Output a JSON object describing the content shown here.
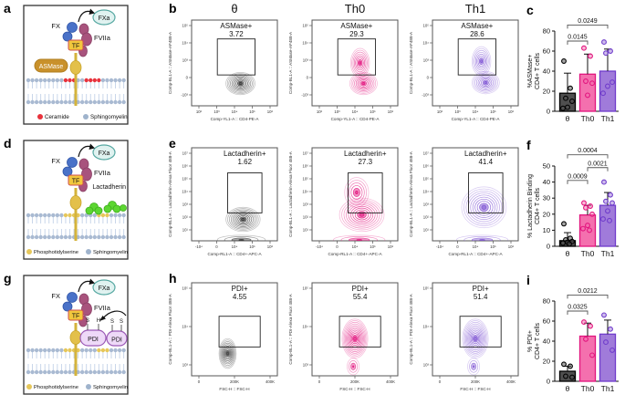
{
  "colors": {
    "theta": "#333333",
    "th0": "#E2147E",
    "th1": "#8055D4"
  },
  "cartoons": [
    {
      "letter": "a",
      "variant": "asmase",
      "fx": "FX",
      "fxa": "FXa",
      "tf": "TF",
      "fviia": "FVIIa",
      "enzyme_label": "ASMase",
      "legend": [
        {
          "label": "Ceramide",
          "color": "#e8323c"
        },
        {
          "label": "Sphingomyelin",
          "color": "#9fb3cc"
        }
      ]
    },
    {
      "letter": "d",
      "variant": "lactadherin",
      "fx": "FX",
      "fxa": "FXa",
      "tf": "TF",
      "fviia": "FVIIa",
      "extra_label": "Lactadherin",
      "legend": [
        {
          "label": "Phosphotidylserine",
          "color": "#e6c75a"
        },
        {
          "label": "Sphingomyelin",
          "color": "#9fb3cc"
        }
      ]
    },
    {
      "letter": "g",
      "variant": "pdi",
      "fx": "FX",
      "fxa": "FXa",
      "tf": "TF",
      "fviia": "FVIIa",
      "extra_label": "PDI",
      "sh_labels": [
        "S",
        "H"
      ],
      "ss_labels": [
        "S",
        "S"
      ],
      "legend": [
        {
          "label": "Phosphotidylserine",
          "color": "#e6c75a"
        },
        {
          "label": "Sphingomyelin",
          "color": "#9fb3cc"
        }
      ]
    }
  ],
  "flow_rows": [
    {
      "letter": "b",
      "titles": [
        "θ",
        "Th0",
        "Th1"
      ],
      "ylabel": "Comp-BL1-A :: ASMase-AF488-A",
      "xlabel": "Comp-YL1-A :: CD4-PE-A",
      "yticks": [
        "10⁵",
        "10⁴",
        "10³",
        "0",
        "-10³"
      ],
      "xticks": [
        "10²",
        "10³",
        "10⁴",
        "10⁵",
        "10⁶"
      ],
      "plots": [
        {
          "gate": "ASMase+",
          "value": "3.72",
          "color": "#333333",
          "gate_rect": [
            0.3,
            0.22,
            0.44,
            0.42
          ],
          "blobs": [
            [
              0.57,
              0.74,
              0.17,
              0.13,
              10
            ]
          ]
        },
        {
          "gate": "ASMase+",
          "value": "29.3",
          "color": "#E2147E",
          "gate_rect": [
            0.3,
            0.22,
            0.44,
            0.42
          ],
          "blobs": [
            [
              0.6,
              0.74,
              0.16,
              0.13,
              9
            ],
            [
              0.56,
              0.5,
              0.11,
              0.17,
              8
            ]
          ]
        },
        {
          "gate": "ASMase+",
          "value": "28.6",
          "color": "#8055D4",
          "gate_rect": [
            0.3,
            0.22,
            0.44,
            0.42
          ],
          "blobs": [
            [
              0.62,
              0.73,
              0.16,
              0.13,
              9
            ],
            [
              0.57,
              0.48,
              0.11,
              0.17,
              8
            ]
          ]
        }
      ]
    },
    {
      "letter": "e",
      "ylabel": "Comp-BL1-A :: Lactadherin-Alexa Fluor 488-A",
      "xlabel": "Comp-RL1-A :: CD4+-APC-A",
      "yticks": [
        "10⁷",
        "10⁶",
        "10⁵",
        "10⁴",
        "10³",
        "10²",
        "10¹"
      ],
      "xticks": [
        "-10⁴",
        "0",
        "10⁴",
        "10⁵",
        "10⁶"
      ],
      "plots": [
        {
          "gate": "Lactadherin+",
          "value": "1.62",
          "color": "#333333",
          "gate_rect": [
            0.42,
            0.27,
            0.4,
            0.43
          ],
          "blobs": [
            [
              0.6,
              0.77,
              0.2,
              0.13,
              10
            ],
            [
              0.58,
              0.99,
              0.28,
              0.05,
              4
            ]
          ]
        },
        {
          "gate": "Lactadherin+",
          "value": "27.3",
          "color": "#E2147E",
          "gate_rect": [
            0.42,
            0.27,
            0.4,
            0.43
          ],
          "blobs": [
            [
              0.58,
              0.72,
              0.26,
              0.18,
              10
            ],
            [
              0.52,
              0.48,
              0.14,
              0.16,
              6
            ],
            [
              0.55,
              0.99,
              0.3,
              0.05,
              4
            ]
          ]
        },
        {
          "gate": "Lactadherin+",
          "value": "41.4",
          "color": "#8055D4",
          "gate_rect": [
            0.42,
            0.27,
            0.4,
            0.43
          ],
          "blobs": [
            [
              0.6,
              0.64,
              0.26,
              0.22,
              10
            ],
            [
              0.58,
              0.99,
              0.3,
              0.05,
              4
            ]
          ]
        }
      ]
    },
    {
      "letter": "h",
      "ylabel": "Comp-BL1-A :: PDI-Alexa Fluor 488-A",
      "xlabel": "FSC-H :: FSC-H",
      "yticks": [
        "10⁵",
        "10⁴",
        "10³"
      ],
      "xticks": [
        "0",
        "200K",
        "400K"
      ],
      "plots": [
        {
          "gate": "PDI+",
          "value": "4.55",
          "color": "#333333",
          "gate_rect": [
            0.32,
            0.36,
            0.48,
            0.33
          ],
          "blobs": [
            [
              0.42,
              0.76,
              0.1,
              0.16,
              10
            ]
          ]
        },
        {
          "gate": "PDI+",
          "value": "55.4",
          "color": "#E2147E",
          "gate_rect": [
            0.32,
            0.36,
            0.48,
            0.33
          ],
          "blobs": [
            [
              0.5,
              0.6,
              0.15,
              0.21,
              12
            ],
            [
              0.48,
              0.9,
              0.07,
              0.09,
              4
            ]
          ]
        },
        {
          "gate": "PDI+",
          "value": "51.4",
          "color": "#8055D4",
          "gate_rect": [
            0.32,
            0.36,
            0.48,
            0.33
          ],
          "blobs": [
            [
              0.5,
              0.6,
              0.15,
              0.21,
              12
            ],
            [
              0.48,
              0.9,
              0.07,
              0.09,
              4
            ]
          ]
        }
      ]
    }
  ],
  "chart_data": [
    {
      "type": "bar",
      "panel": "c",
      "categories": [
        "θ",
        "Th0",
        "Th1"
      ],
      "values": [
        18,
        37,
        40
      ],
      "errors_upper": [
        38,
        57,
        62
      ],
      "points": [
        [
          50,
          23,
          13,
          10,
          4,
          3
        ],
        [
          63,
          55,
          30,
          28,
          16
        ],
        [
          69,
          60,
          58,
          29,
          25,
          18
        ]
      ],
      "ylabel_lines": [
        "%ASMase+",
        "CD4+ T cells"
      ],
      "ylim": [
        0,
        80
      ],
      "yticks": [
        0,
        20,
        40,
        60,
        80
      ],
      "brackets": [
        {
          "from": 0,
          "to": 1,
          "label": "0.0145",
          "y": 70
        },
        {
          "from": 0,
          "to": 2,
          "label": "0.0249",
          "y": 86
        }
      ],
      "fills": [
        "#4f4f4f",
        "#F470AE",
        "#A07BDA"
      ],
      "strokes": [
        "#000000",
        "#E2147E",
        "#6F3BCB"
      ]
    },
    {
      "type": "bar",
      "panel": "f",
      "categories": [
        "θ",
        "Th0",
        "Th1"
      ],
      "values": [
        3.5,
        19.5,
        25.5
      ],
      "errors_upper": [
        8.5,
        25.5,
        33.5
      ],
      "points": [
        [
          14,
          5,
          4,
          3,
          2.5,
          2,
          1.5
        ],
        [
          27,
          25,
          24,
          20,
          13,
          11,
          10
        ],
        [
          40,
          32,
          28,
          27,
          22,
          17,
          16
        ]
      ],
      "ylabel_lines": [
        "% Lactadherin Binding",
        "CD4+ T cells"
      ],
      "ylim": [
        0,
        50
      ],
      "yticks": [
        0,
        10,
        20,
        30,
        40,
        50
      ],
      "brackets": [
        {
          "from": 0,
          "to": 1,
          "label": "0.0009",
          "y": 41
        },
        {
          "from": 1,
          "to": 2,
          "label": "0.0021",
          "y": 49
        },
        {
          "from": 0,
          "to": 2,
          "label": "0.0004",
          "y": 57
        }
      ],
      "fills": [
        "#4f4f4f",
        "#F470AE",
        "#A07BDA"
      ],
      "strokes": [
        "#000000",
        "#E2147E",
        "#6F3BCB"
      ]
    },
    {
      "type": "bar",
      "panel": "i",
      "categories": [
        "θ",
        "Th0",
        "Th1"
      ],
      "values": [
        10,
        45,
        47
      ],
      "errors_upper": [
        15,
        58,
        61
      ],
      "points": [
        [
          17,
          15,
          5,
          4
        ],
        [
          59,
          55,
          42,
          26
        ],
        [
          66,
          52,
          39,
          31
        ]
      ],
      "ylabel_lines": [
        "% PDI+",
        "CD4+ T cells"
      ],
      "ylim": [
        0,
        80
      ],
      "yticks": [
        0,
        20,
        40,
        60,
        80
      ],
      "brackets": [
        {
          "from": 0,
          "to": 1,
          "label": "0.0325",
          "y": 70
        },
        {
          "from": 0,
          "to": 2,
          "label": "0.0212",
          "y": 86
        }
      ],
      "fills": [
        "#4f4f4f",
        "#F470AE",
        "#A07BDA"
      ],
      "strokes": [
        "#000000",
        "#E2147E",
        "#6F3BCB"
      ]
    }
  ]
}
